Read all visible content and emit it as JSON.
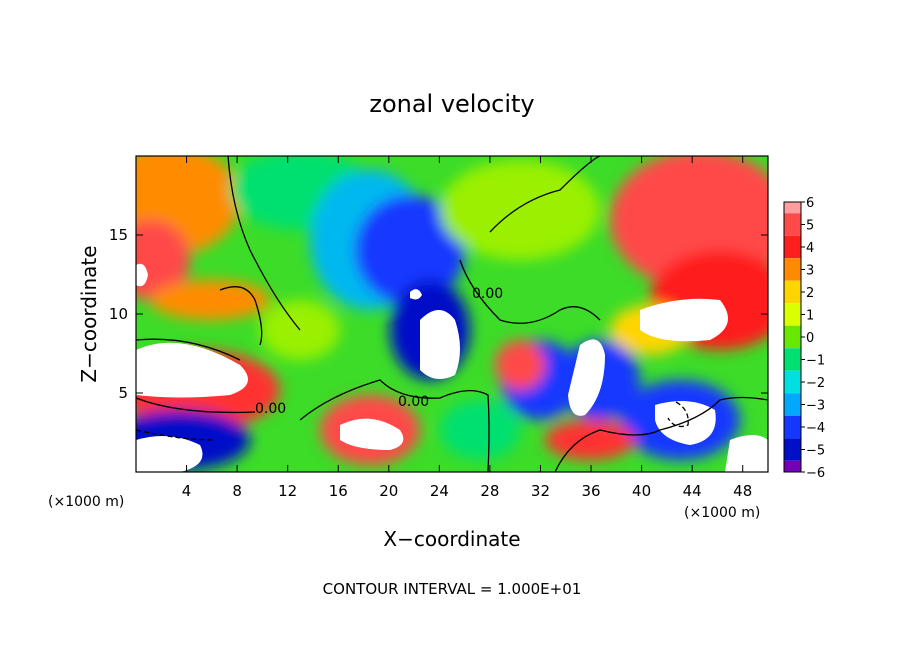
{
  "chart_data": {
    "type": "heatmap",
    "title": "zonal velocity",
    "xlabel": "X−coordinate",
    "ylabel": "Z−coordinate",
    "x_unit_left": "(×1000 m)",
    "x_unit_right": "(×1000 m)",
    "footer": "CONTOUR INTERVAL = 1.000E+01",
    "contour_label": "0.00",
    "xlim": [
      0,
      50
    ],
    "ylim": [
      0,
      20
    ],
    "x_ticks": [
      4,
      8,
      12,
      16,
      20,
      24,
      28,
      32,
      36,
      40,
      44,
      48
    ],
    "y_ticks": [
      5,
      10,
      15
    ],
    "colorbar": {
      "range": [
        -6,
        6
      ],
      "levels": [
        6,
        5,
        4,
        3,
        2,
        1,
        0,
        -1,
        -2,
        -3,
        -4,
        -5,
        -6
      ],
      "labels": [
        "6",
        "5",
        "4",
        "3",
        "2",
        "1",
        "0",
        "−1",
        "−2",
        "−3",
        "−4",
        "−5",
        "−6"
      ],
      "colors": [
        "#ff9e9e",
        "#ff4a4a",
        "#ff1e1e",
        "#ff8c00",
        "#ffd500",
        "#d9ff00",
        "#66e800",
        "#00e070",
        "#00e0e0",
        "#00a8ff",
        "#1438ff",
        "#0010c8",
        "#7800b4"
      ]
    }
  }
}
